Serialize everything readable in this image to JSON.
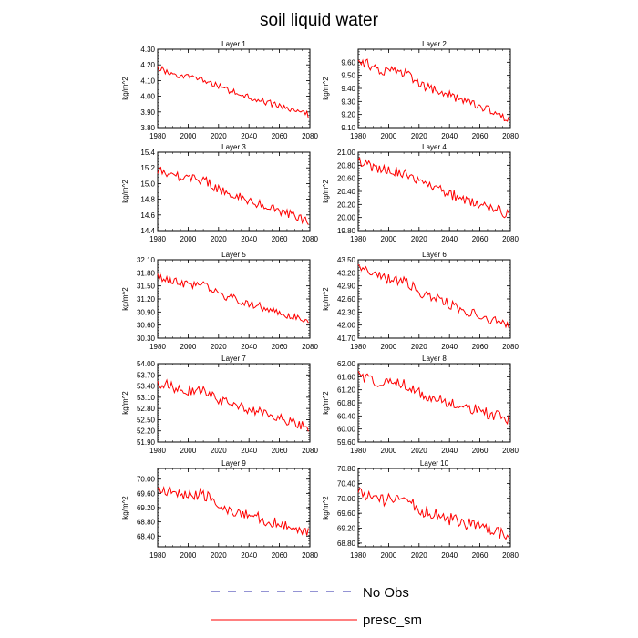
{
  "figure": {
    "title": "soil liquid water"
  },
  "legend": {
    "items": [
      {
        "label": "No Obs",
        "color": "#2a2aa8",
        "dash": "dashed"
      },
      {
        "label": "presc_sm",
        "color": "#ff0000",
        "dash": "solid"
      }
    ]
  },
  "chart_data": [
    {
      "type": "line",
      "title": "Layer 1",
      "ylabel": "kg/m^2",
      "xlim": [
        1980,
        2080
      ],
      "ylim": [
        3.8,
        4.3
      ],
      "yticks": [
        "3.80",
        "3.90",
        "4.00",
        "4.10",
        "4.20",
        "4.30"
      ],
      "xticks": [
        "1980",
        "2000",
        "2020",
        "2040",
        "2060",
        "2080"
      ],
      "series": [
        {
          "name": "presc_sm",
          "start_year": 1980,
          "start": 4.18,
          "end": 3.88,
          "amp": 0.022,
          "bump": 0.02
        }
      ]
    },
    {
      "type": "line",
      "title": "Layer 2",
      "ylabel": "kg/m^2",
      "xlim": [
        1980,
        2080
      ],
      "ylim": [
        9.1,
        9.7
      ],
      "yticks": [
        "9.10",
        "9.20",
        "9.30",
        "9.40",
        "9.50",
        "9.60"
      ],
      "xticks": [
        "1980",
        "2000",
        "2020",
        "2040",
        "2060",
        "2080"
      ],
      "series": [
        {
          "name": "presc_sm",
          "start_year": 1980,
          "start": 9.61,
          "end": 9.17,
          "amp": 0.04,
          "bump": 0.04
        }
      ]
    },
    {
      "type": "line",
      "title": "Layer 3",
      "ylabel": "kg/m^2",
      "xlim": [
        1980,
        2080
      ],
      "ylim": [
        14.4,
        15.4
      ],
      "yticks": [
        "14.4",
        "14.6",
        "14.8",
        "15.0",
        "15.2",
        "15.4"
      ],
      "xticks": [
        "1980",
        "2000",
        "2020",
        "2040",
        "2060",
        "2080"
      ],
      "series": [
        {
          "name": "presc_sm",
          "start_year": 1980,
          "start": 15.18,
          "end": 14.52,
          "amp": 0.06,
          "bump": 0.06
        }
      ]
    },
    {
      "type": "line",
      "title": "Layer 4",
      "ylabel": "kg/m^2",
      "xlim": [
        1980,
        2080
      ],
      "ylim": [
        19.8,
        21.0
      ],
      "yticks": [
        "19.80",
        "20.00",
        "20.20",
        "20.40",
        "20.60",
        "20.80",
        "21.00"
      ],
      "xticks": [
        "1980",
        "2000",
        "2020",
        "2040",
        "2060",
        "2080"
      ],
      "series": [
        {
          "name": "presc_sm",
          "start_year": 1980,
          "start": 20.85,
          "end": 20.05,
          "amp": 0.08,
          "bump": 0.08
        }
      ]
    },
    {
      "type": "line",
      "title": "Layer 5",
      "ylabel": "kg/m^2",
      "xlim": [
        1980,
        2080
      ],
      "ylim": [
        30.3,
        32.1
      ],
      "yticks": [
        "30.30",
        "30.60",
        "30.90",
        "31.20",
        "31.50",
        "31.80",
        "32.10"
      ],
      "xticks": [
        "1980",
        "2000",
        "2020",
        "2040",
        "2060",
        "2080"
      ],
      "series": [
        {
          "name": "presc_sm",
          "start_year": 1980,
          "start": 31.72,
          "end": 30.7,
          "amp": 0.09,
          "bump": 0.1
        }
      ]
    },
    {
      "type": "line",
      "title": "Layer 6",
      "ylabel": "kg/m^2",
      "xlim": [
        1980,
        2080
      ],
      "ylim": [
        41.7,
        43.5
      ],
      "yticks": [
        "41.70",
        "42.00",
        "42.30",
        "42.60",
        "42.90",
        "43.20",
        "43.50"
      ],
      "xticks": [
        "1980",
        "2000",
        "2020",
        "2040",
        "2060",
        "2080"
      ],
      "series": [
        {
          "name": "presc_sm",
          "start_year": 1980,
          "start": 43.3,
          "end": 41.95,
          "amp": 0.12,
          "bump": 0.12
        }
      ]
    },
    {
      "type": "line",
      "title": "Layer 7",
      "ylabel": "kg/m^2",
      "xlim": [
        1980,
        2080
      ],
      "ylim": [
        51.9,
        54.0
      ],
      "yticks": [
        "51.90",
        "52.20",
        "52.50",
        "52.80",
        "53.10",
        "53.40",
        "53.70",
        "54.00"
      ],
      "xticks": [
        "1980",
        "2000",
        "2020",
        "2040",
        "2060",
        "2080"
      ],
      "series": [
        {
          "name": "presc_sm",
          "start_year": 1980,
          "start": 53.5,
          "end": 52.3,
          "amp": 0.14,
          "bump": 0.15
        }
      ]
    },
    {
      "type": "line",
      "title": "Layer 8",
      "ylabel": "kg/m^2",
      "xlim": [
        1980,
        2080
      ],
      "ylim": [
        59.6,
        62.0
      ],
      "yticks": [
        "59.60",
        "60.00",
        "60.40",
        "60.80",
        "61.20",
        "61.60",
        "62.00"
      ],
      "xticks": [
        "1980",
        "2000",
        "2020",
        "2040",
        "2060",
        "2080"
      ],
      "series": [
        {
          "name": "presc_sm",
          "start_year": 1980,
          "start": 61.6,
          "end": 60.3,
          "amp": 0.17,
          "bump": 0.18
        }
      ]
    },
    {
      "type": "line",
      "title": "Layer 9",
      "ylabel": "kg/m^2",
      "xlim": [
        1980,
        2080
      ],
      "ylim": [
        68.1,
        70.3
      ],
      "yticks": [
        "68.40",
        "68.80",
        "69.20",
        "69.60",
        "70.00"
      ],
      "xticks": [
        "1980",
        "2000",
        "2020",
        "2040",
        "2060",
        "2080"
      ],
      "series": [
        {
          "name": "presc_sm",
          "start_year": 1980,
          "start": 69.75,
          "end": 68.5,
          "amp": 0.16,
          "bump": 0.2
        }
      ]
    },
    {
      "type": "line",
      "title": "Layer 10",
      "ylabel": "kg/m^2",
      "xlim": [
        1980,
        2080
      ],
      "ylim": [
        68.7,
        70.8
      ],
      "yticks": [
        "68.80",
        "69.20",
        "69.60",
        "70.00",
        "70.40",
        "70.80"
      ],
      "xticks": [
        "1980",
        "2000",
        "2020",
        "2040",
        "2060",
        "2080"
      ],
      "series": [
        {
          "name": "presc_sm",
          "start_year": 1980,
          "start": 70.15,
          "end": 69.0,
          "amp": 0.17,
          "bump": 0.2
        }
      ]
    }
  ]
}
